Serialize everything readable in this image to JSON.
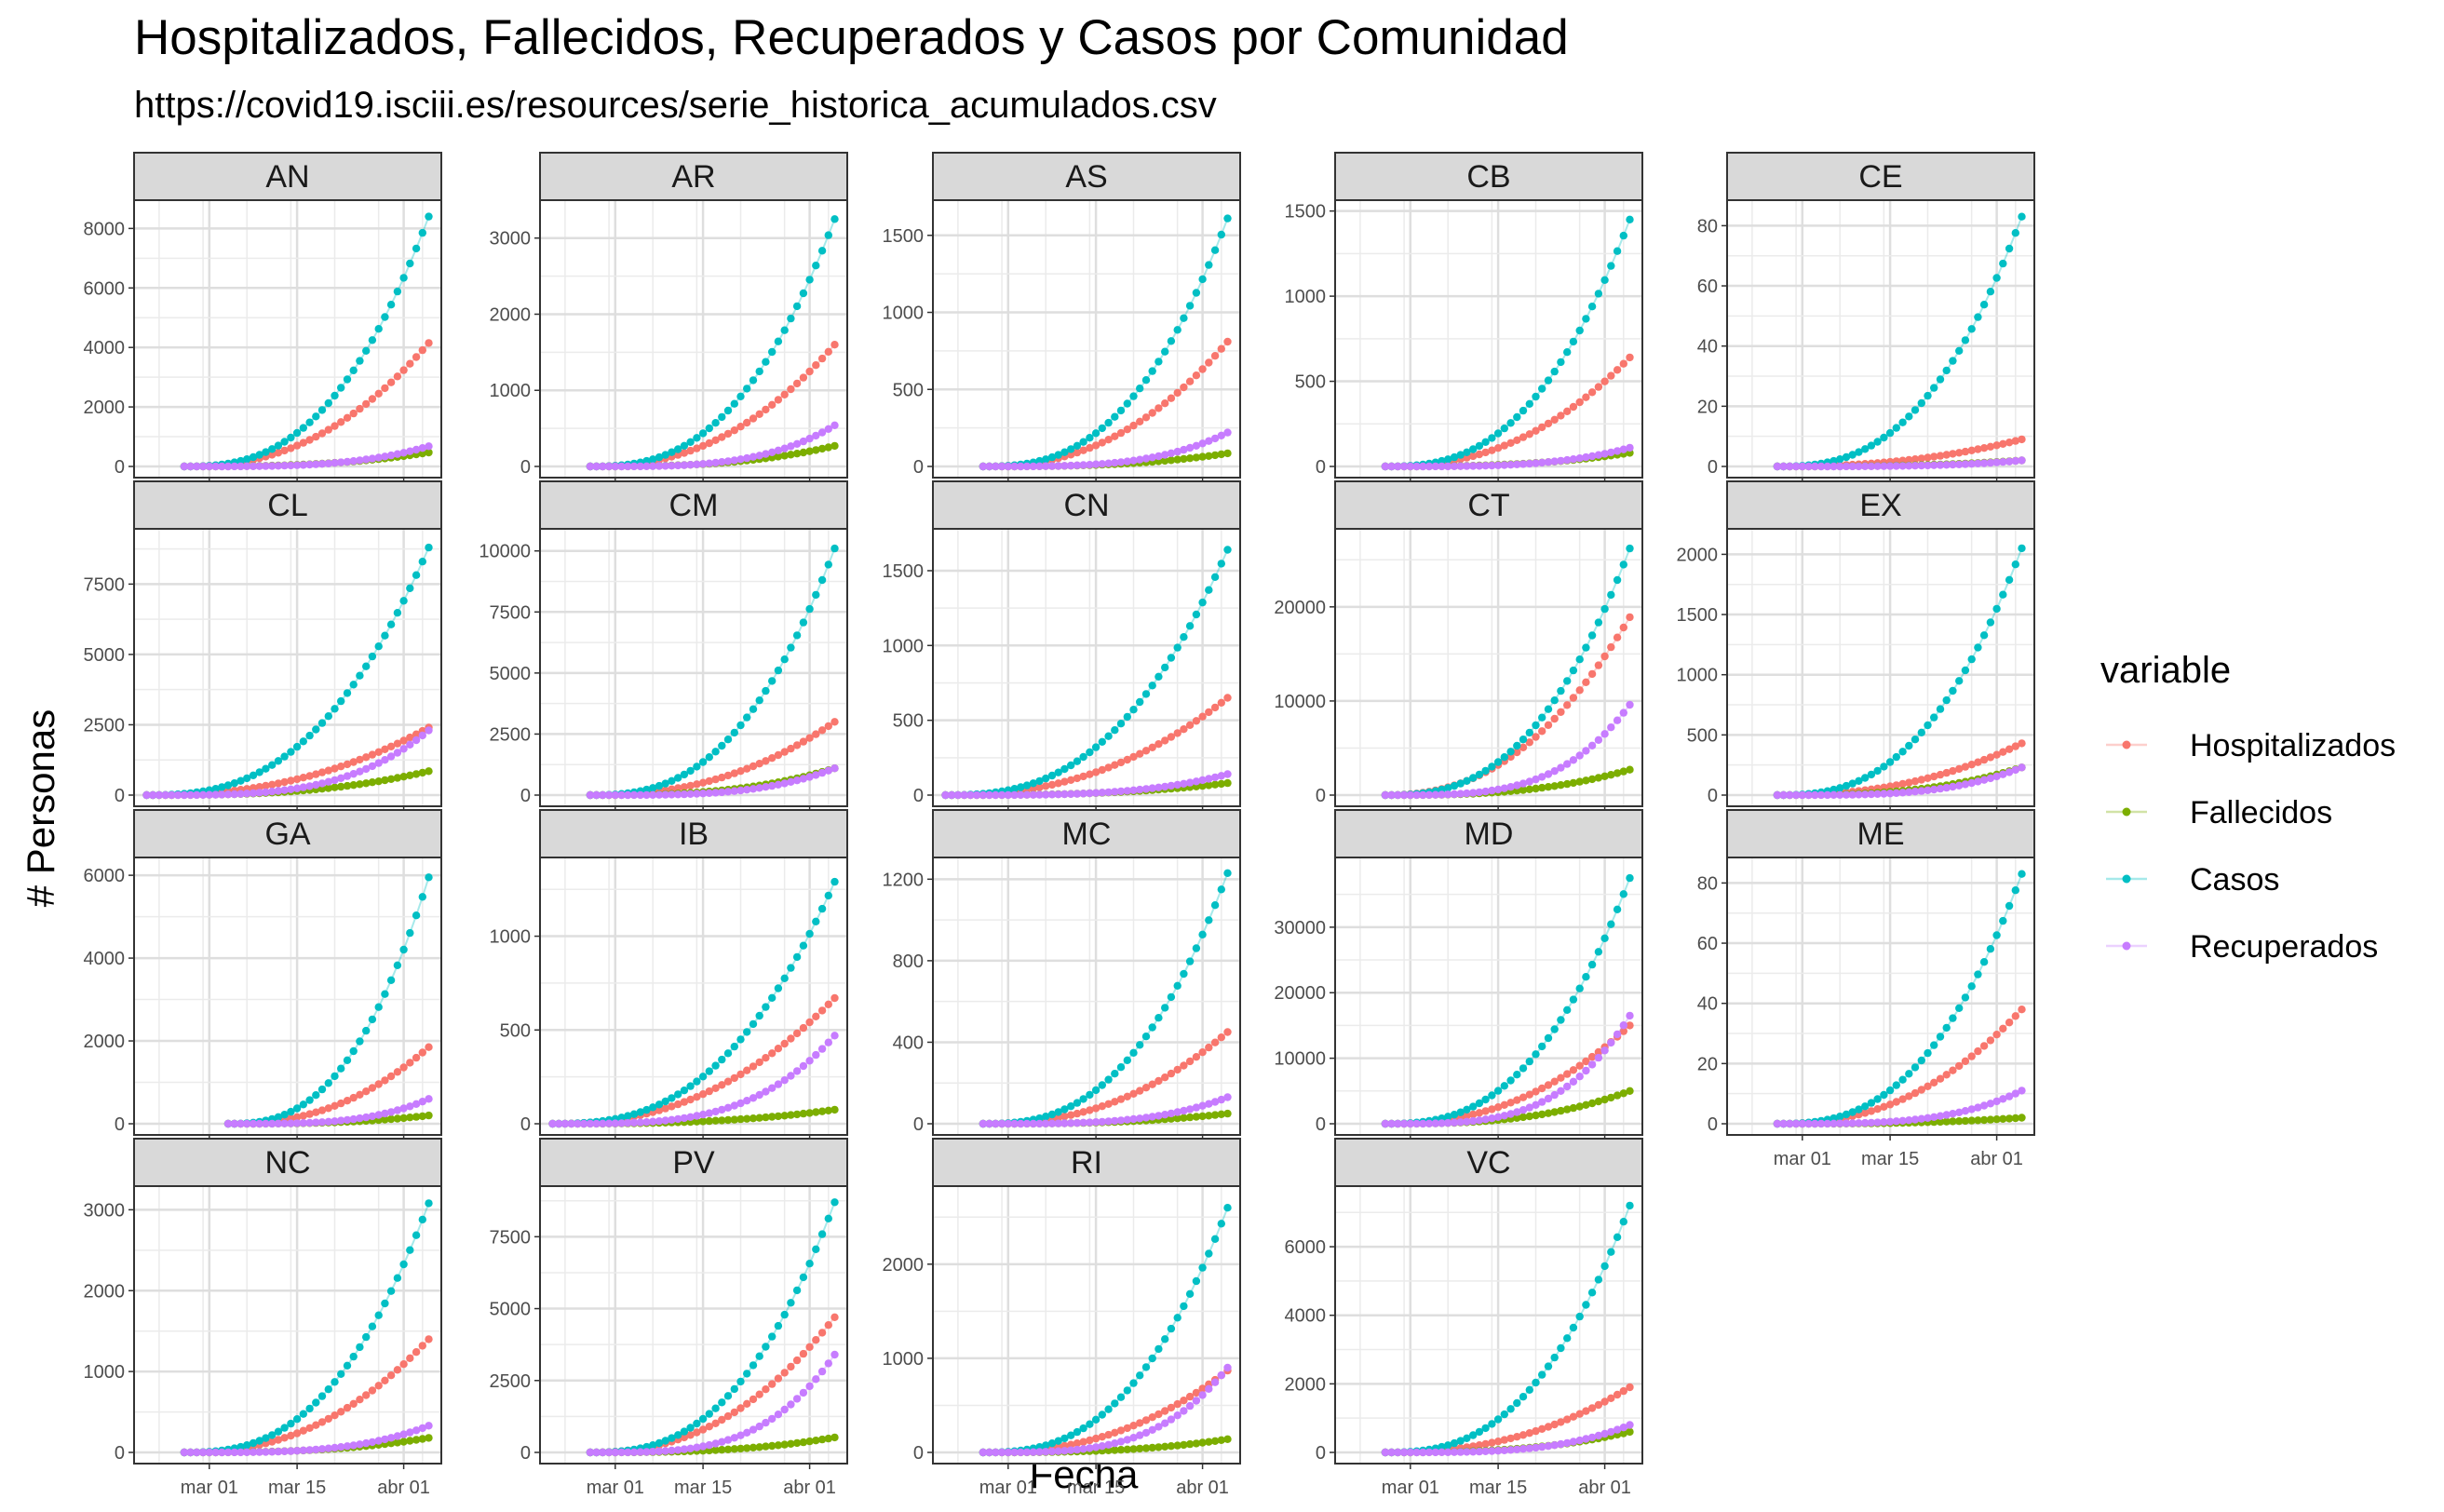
{
  "chart_data": {
    "type": "scatter",
    "title": "Hospitalizados, Fallecidos, Recuperados y Casos por Comunidad",
    "subtitle": "https://covid19.isciii.es/resources/serie_historica_acumulados.csv",
    "xlabel": "Fecha",
    "ylabel": "# Personas",
    "x_tick_labels": [
      "mar 01",
      "mar 15",
      "abr 01"
    ],
    "legend": {
      "title": "variable",
      "position": "right",
      "entries": [
        {
          "name": "Hospitalizados",
          "color": "#F8766D"
        },
        {
          "name": "Fallecidos",
          "color": "#7CAE00"
        },
        {
          "name": "Casos",
          "color": "#00BFC4"
        },
        {
          "name": "Recuperados",
          "color": "#C77CFF"
        }
      ]
    },
    "x_range": [
      "2020-02-18",
      "2020-04-07"
    ],
    "series_end_date": "2020-04-05",
    "facets": [
      {
        "name": "AN",
        "start": "2020-02-26",
        "yticks": [
          0,
          2000,
          4000,
          6000,
          8000
        ],
        "ymax": 8700,
        "final": {
          "Hospitalizados": 4150,
          "Fallecidos": 470,
          "Casos": 8400,
          "Recuperados": 680
        }
      },
      {
        "name": "AR",
        "start": "2020-02-26",
        "yticks": [
          0,
          1000,
          2000,
          3000
        ],
        "ymax": 3400,
        "final": {
          "Hospitalizados": 1600,
          "Fallecidos": 270,
          "Casos": 3250,
          "Recuperados": 540
        }
      },
      {
        "name": "AS",
        "start": "2020-02-26",
        "yticks": [
          0,
          500,
          1000,
          1500
        ],
        "ymax": 1680,
        "final": {
          "Hospitalizados": 810,
          "Fallecidos": 85,
          "Casos": 1610,
          "Recuperados": 220
        }
      },
      {
        "name": "CB",
        "start": "2020-02-26",
        "yticks": [
          0,
          500,
          1000,
          1500
        ],
        "ymax": 1520,
        "final": {
          "Hospitalizados": 640,
          "Fallecidos": 80,
          "Casos": 1450,
          "Recuperados": 110
        }
      },
      {
        "name": "CE",
        "start": "2020-02-26",
        "yticks": [
          0,
          20,
          40,
          60,
          80
        ],
        "ymax": 86,
        "final": {
          "Hospitalizados": 9,
          "Fallecidos": 2,
          "Casos": 83,
          "Recuperados": 2
        }
      },
      {
        "name": "CL",
        "start": "2020-02-20",
        "yticks": [
          0,
          2500,
          5000,
          7500
        ],
        "ymax": 9200,
        "final": {
          "Hospitalizados": 2400,
          "Fallecidos": 850,
          "Casos": 8800,
          "Recuperados": 2300
        }
      },
      {
        "name": "CM",
        "start": "2020-02-26",
        "yticks": [
          0,
          2500,
          5000,
          7500,
          10000
        ],
        "ymax": 10600,
        "final": {
          "Hospitalizados": 3000,
          "Fallecidos": 1100,
          "Casos": 10100,
          "Recuperados": 1100
        }
      },
      {
        "name": "CN",
        "start": "2020-02-20",
        "yticks": [
          0,
          500,
          1000,
          1500
        ],
        "ymax": 1730,
        "final": {
          "Hospitalizados": 650,
          "Fallecidos": 80,
          "Casos": 1640,
          "Recuperados": 140
        }
      },
      {
        "name": "CT",
        "start": "2020-02-26",
        "yticks": [
          0,
          10000,
          20000
        ],
        "ymax": 27500,
        "final": {
          "Hospitalizados": 18900,
          "Fallecidos": 2700,
          "Casos": 26200,
          "Recuperados": 9600
        }
      },
      {
        "name": "EX",
        "start": "2020-02-26",
        "yticks": [
          0,
          500,
          1000,
          1500,
          2000
        ],
        "ymax": 2150,
        "final": {
          "Hospitalizados": 430,
          "Fallecidos": 230,
          "Casos": 2050,
          "Recuperados": 230
        }
      },
      {
        "name": "GA",
        "start": "2020-03-04",
        "yticks": [
          0,
          2000,
          4000,
          6000
        ],
        "ymax": 6250,
        "final": {
          "Hospitalizados": 1850,
          "Fallecidos": 200,
          "Casos": 5950,
          "Recuperados": 600
        }
      },
      {
        "name": "IB",
        "start": "2020-02-20",
        "yticks": [
          0,
          500,
          1000
        ],
        "ymax": 1380,
        "final": {
          "Hospitalizados": 670,
          "Fallecidos": 75,
          "Casos": 1290,
          "Recuperados": 470
        }
      },
      {
        "name": "MC",
        "start": "2020-02-26",
        "yticks": [
          0,
          400,
          800,
          1200
        ],
        "ymax": 1270,
        "final": {
          "Hospitalizados": 450,
          "Fallecidos": 50,
          "Casos": 1230,
          "Recuperados": 130
        }
      },
      {
        "name": "MD",
        "start": "2020-02-26",
        "yticks": [
          0,
          10000,
          20000,
          30000
        ],
        "ymax": 39500,
        "final": {
          "Hospitalizados": 15000,
          "Fallecidos": 5000,
          "Casos": 37500,
          "Recuperados": 16500
        }
      },
      {
        "name": "ME",
        "start": "2020-02-26",
        "yticks": [
          0,
          20,
          40,
          60,
          80
        ],
        "ymax": 86,
        "final": {
          "Hospitalizados": 38,
          "Fallecidos": 2,
          "Casos": 83,
          "Recuperados": 11
        }
      },
      {
        "name": "NC",
        "start": "2020-02-26",
        "yticks": [
          0,
          1000,
          2000,
          3000
        ],
        "ymax": 3200,
        "final": {
          "Hospitalizados": 1400,
          "Fallecidos": 180,
          "Casos": 3080,
          "Recuperados": 330
        }
      },
      {
        "name": "PV",
        "start": "2020-02-26",
        "yticks": [
          0,
          2500,
          5000,
          7500
        ],
        "ymax": 9000,
        "final": {
          "Hospitalizados": 4700,
          "Fallecidos": 520,
          "Casos": 8700,
          "Recuperados": 3400
        }
      },
      {
        "name": "RI",
        "start": "2020-02-26",
        "yticks": [
          0,
          1000,
          2000
        ],
        "ymax": 2750,
        "final": {
          "Hospitalizados": 870,
          "Fallecidos": 140,
          "Casos": 2600,
          "Recuperados": 900
        }
      },
      {
        "name": "VC",
        "start": "2020-02-26",
        "yticks": [
          0,
          2000,
          4000,
          6000
        ],
        "ymax": 7550,
        "final": {
          "Hospitalizados": 1900,
          "Fallecidos": 600,
          "Casos": 7200,
          "Recuperados": 800
        }
      }
    ]
  }
}
